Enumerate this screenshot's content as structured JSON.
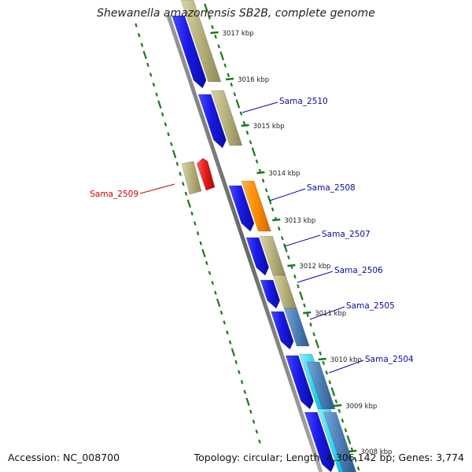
{
  "header": {
    "title": "Shewanella amazonensis SB2B, complete genome"
  },
  "footer": {
    "accession": "Accession: NC_008700",
    "summary": "Topology: circular; Length: 4,306,142 bp; Genes: 3,774"
  },
  "colors": {
    "cds_forward": "#b5b07a",
    "cds_reverse": "#1a1ae6",
    "highlight_orange": "#ff8c00",
    "highlight_red": "#e61a1a",
    "highlight_steel": "#4a7fb5",
    "highlight_cyan": "#2ad0ee",
    "ticks": "#1a7a1a",
    "backbone": "#777777",
    "label_blue": "#00008b",
    "label_red": "#cc0000"
  },
  "scale_ticks": [
    {
      "kbp": 3017,
      "label": "3017 kbp"
    },
    {
      "kbp": 3016,
      "label": "3016 kbp"
    },
    {
      "kbp": 3015,
      "label": "3015 kbp"
    },
    {
      "kbp": 3014,
      "label": "3014 kbp"
    },
    {
      "kbp": 3013,
      "label": "3013 kbp"
    },
    {
      "kbp": 3012,
      "label": "3012 kbp"
    },
    {
      "kbp": 3011,
      "label": "3011 kbp"
    },
    {
      "kbp": 3010,
      "label": "3010 kbp"
    },
    {
      "kbp": 3009,
      "label": "3009 kbp"
    },
    {
      "kbp": 3008,
      "label": "3008 kbp"
    }
  ],
  "gene_labels": [
    {
      "name": "Sama_2510",
      "color": "blue"
    },
    {
      "name": "Sama_2509",
      "color": "red"
    },
    {
      "name": "Sama_2508",
      "color": "blue"
    },
    {
      "name": "Sama_2507",
      "color": "blue"
    },
    {
      "name": "Sama_2506",
      "color": "blue"
    },
    {
      "name": "Sama_2505",
      "color": "blue"
    },
    {
      "name": "Sama_2504",
      "color": "blue"
    }
  ]
}
